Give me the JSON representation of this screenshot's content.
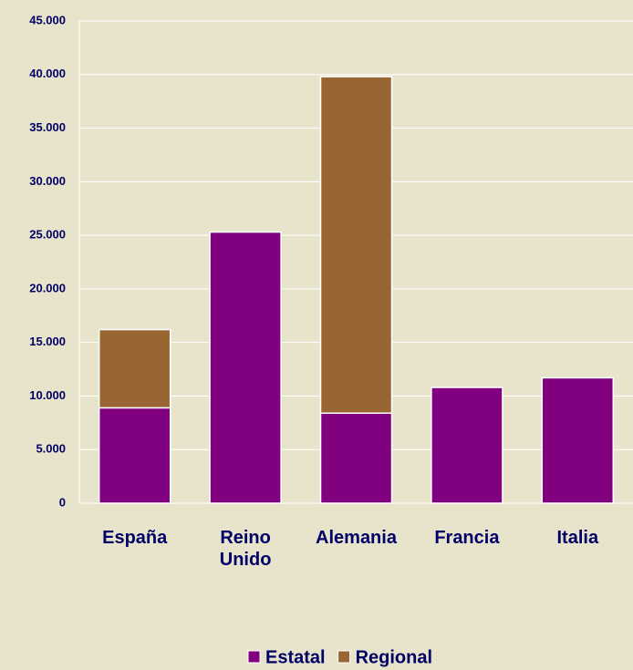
{
  "chart_data": {
    "type": "bar",
    "stacked": true,
    "categories": [
      "España",
      "Reino Unido",
      "Alemania",
      "Francia",
      "Italia"
    ],
    "series": [
      {
        "name": "Estatal",
        "color": "#800080",
        "values": [
          8900,
          25300,
          8400,
          10800,
          11700
        ]
      },
      {
        "name": "Regional",
        "color": "#996633",
        "values": [
          7300,
          null,
          31400,
          null,
          null
        ]
      }
    ],
    "ylim": [
      0,
      45000
    ],
    "yticks": [
      0,
      {
        "value": 5000,
        "label": "5.000"
      },
      {
        "value": 10000,
        "label": "10.000"
      },
      {
        "value": 15000,
        "label": "15.000"
      },
      {
        "value": 20000,
        "label": "20.000"
      },
      {
        "value": 25000,
        "label": "25.000"
      },
      {
        "value": 30000,
        "label": "30.000"
      },
      {
        "value": 35000,
        "label": "35.000"
      },
      {
        "value": 40000,
        "label": "40.000"
      },
      {
        "value": 45000,
        "label": "45.000"
      }
    ],
    "grid": true,
    "legend": "bottom"
  }
}
